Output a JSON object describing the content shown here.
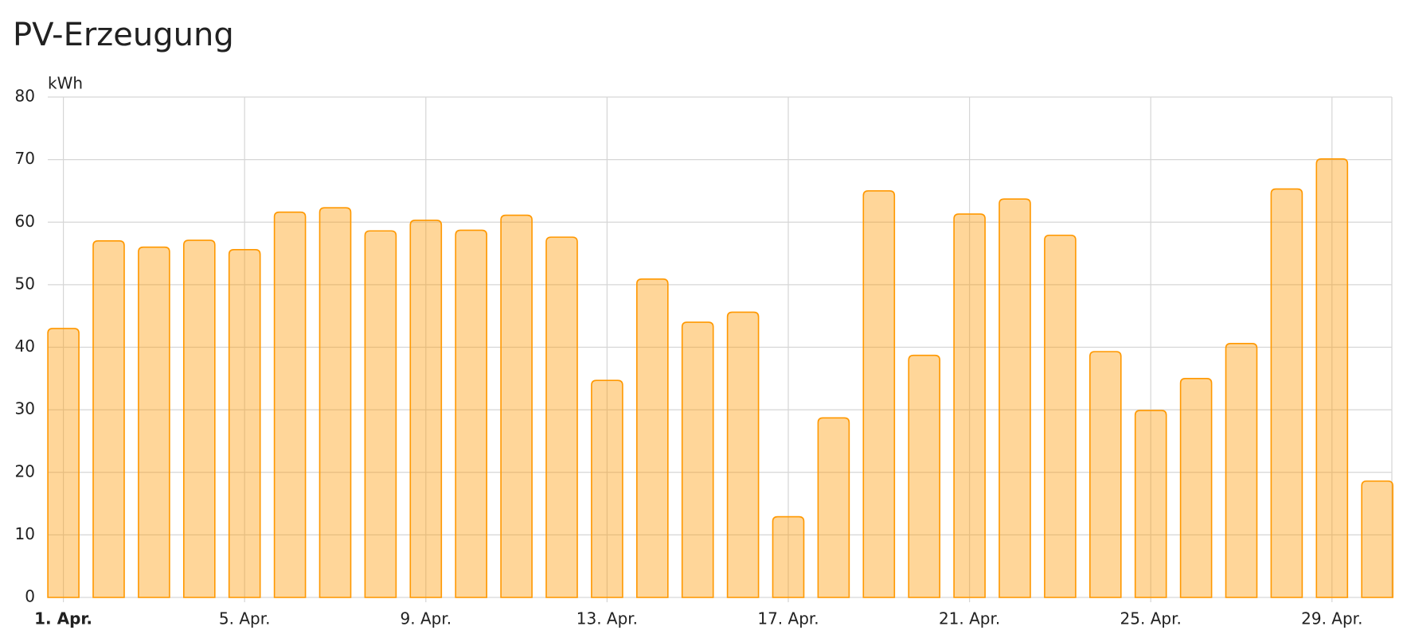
{
  "chart_data": {
    "type": "bar",
    "title": "PV-Erzeugung",
    "y_label": "kWh",
    "categories": [
      "1. Apr.",
      null,
      null,
      null,
      "5. Apr.",
      null,
      null,
      null,
      "9. Apr.",
      null,
      null,
      null,
      "13. Apr.",
      null,
      null,
      null,
      "17. Apr.",
      null,
      null,
      null,
      "21. Apr.",
      null,
      null,
      null,
      "25. Apr.",
      null,
      null,
      null,
      "29. Apr.",
      null
    ],
    "values": [
      43,
      57,
      56,
      57.1,
      55.6,
      61.6,
      62.3,
      58.6,
      60.3,
      58.7,
      61.1,
      57.6,
      34.7,
      50.9,
      44,
      45.6,
      12.9,
      28.7,
      65,
      38.7,
      61.3,
      63.7,
      57.9,
      39.3,
      29.9,
      35,
      40.6,
      65.3,
      70.1,
      18.6
    ],
    "color": "#ff9800",
    "ylim": [
      0,
      80
    ],
    "yticks": [
      0,
      10,
      20,
      30,
      40,
      50,
      60,
      70,
      80
    ],
    "grid": true
  }
}
